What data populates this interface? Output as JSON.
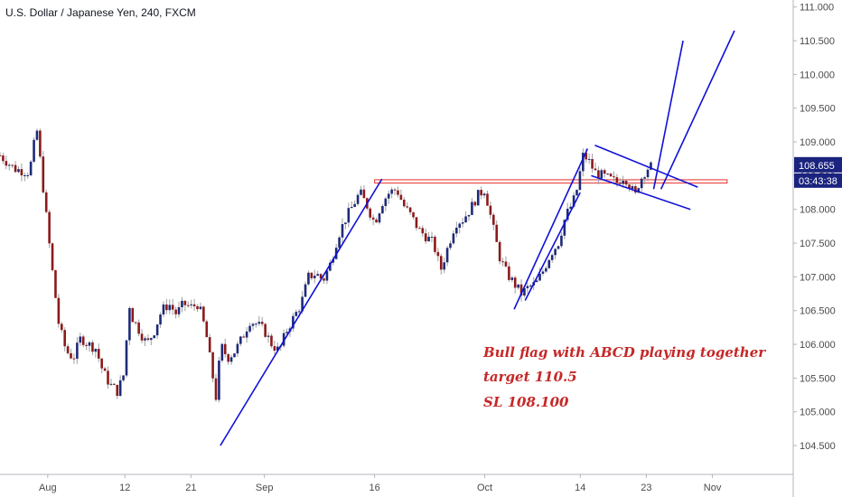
{
  "title": "U.S. Dollar / Japanese Yen, 240, FXCM",
  "colors": {
    "candle_up": "#1e2a78",
    "candle_down": "#8b1a1a",
    "wick": "#9e9e9e",
    "drawing": "#1010d8",
    "resistance": "#e53935",
    "price_badge_bg": "#1a237e",
    "annotation": "#c62828",
    "axis_text": "#4a4a4a"
  },
  "annotations": [
    "Bull flag with ABCD playing together",
    "target 110.5",
    "SL 108.100"
  ],
  "price_badge": {
    "price": "108.655",
    "countdown": "03:43:38"
  },
  "chart_data": {
    "type": "candlestick",
    "title": "U.S. Dollar / Japanese Yen, 240, FXCM",
    "ylim": [
      104.3,
      111.05
    ],
    "yticks": [
      "111.000",
      "110.500",
      "110.000",
      "109.500",
      "109.000",
      "108.500",
      "108.000",
      "107.500",
      "107.000",
      "106.500",
      "106.000",
      "105.500",
      "105.000",
      "104.500"
    ],
    "ytick_values": [
      111.0,
      110.5,
      110.0,
      109.5,
      109.0,
      108.5,
      108.0,
      107.5,
      107.0,
      106.5,
      106.0,
      105.5,
      105.0,
      104.5
    ],
    "xlim": [
      0,
      108
    ],
    "xticks": [
      {
        "label": "Aug",
        "t": 6.5
      },
      {
        "label": "12",
        "t": 17
      },
      {
        "label": "21",
        "t": 26
      },
      {
        "label": "Sep",
        "t": 36
      },
      {
        "label": "16",
        "t": 51
      },
      {
        "label": "Oct",
        "t": 66
      },
      {
        "label": "14",
        "t": 79
      },
      {
        "label": "23",
        "t": 88
      },
      {
        "label": "Nov",
        "t": 97
      }
    ],
    "close_path": [
      [
        0,
        108.8
      ],
      [
        2,
        108.6
      ],
      [
        4,
        108.55
      ],
      [
        5,
        109.2
      ],
      [
        6,
        108.2
      ],
      [
        7,
        107.2
      ],
      [
        8,
        106.3
      ],
      [
        9,
        105.9
      ],
      [
        10,
        105.8
      ],
      [
        11,
        106.1
      ],
      [
        12,
        106.0
      ],
      [
        13,
        105.95
      ],
      [
        14,
        105.6
      ],
      [
        15,
        105.4
      ],
      [
        16,
        105.3
      ],
      [
        17,
        105.6
      ],
      [
        17.5,
        106.65
      ],
      [
        18,
        106.4
      ],
      [
        19,
        106.2
      ],
      [
        20,
        106.0
      ],
      [
        21,
        106.2
      ],
      [
        22,
        106.5
      ],
      [
        23,
        106.6
      ],
      [
        24,
        106.45
      ],
      [
        25,
        106.6
      ],
      [
        26,
        106.55
      ],
      [
        27,
        106.6
      ],
      [
        28,
        106.2
      ],
      [
        29,
        105.5
      ],
      [
        29.5,
        105.15
      ],
      [
        30,
        106.0
      ],
      [
        31,
        105.8
      ],
      [
        32,
        105.9
      ],
      [
        33,
        106.1
      ],
      [
        34,
        106.35
      ],
      [
        35,
        106.3
      ],
      [
        36,
        106.2
      ],
      [
        37,
        106.0
      ],
      [
        38,
        105.9
      ],
      [
        39,
        106.2
      ],
      [
        40,
        106.4
      ],
      [
        41,
        106.6
      ],
      [
        42,
        107.0
      ],
      [
        43,
        107.05
      ],
      [
        44,
        106.95
      ],
      [
        45,
        107.2
      ],
      [
        46,
        107.6
      ],
      [
        47,
        107.85
      ],
      [
        48,
        108.05
      ],
      [
        49,
        108.25
      ],
      [
        50,
        108.05
      ],
      [
        51,
        107.8
      ],
      [
        52,
        108.1
      ],
      [
        53,
        108.25
      ],
      [
        54,
        108.3
      ],
      [
        55,
        108.05
      ],
      [
        56,
        107.9
      ],
      [
        57,
        107.7
      ],
      [
        58,
        107.6
      ],
      [
        59,
        107.5
      ],
      [
        60,
        107.1
      ],
      [
        61,
        107.45
      ],
      [
        62,
        107.8
      ],
      [
        63,
        107.85
      ],
      [
        64,
        108.0
      ],
      [
        65,
        108.2
      ],
      [
        66,
        108.3
      ],
      [
        67,
        107.8
      ],
      [
        68,
        107.3
      ],
      [
        69,
        107.05
      ],
      [
        70,
        106.9
      ],
      [
        71,
        106.75
      ],
      [
        72,
        106.85
      ],
      [
        73,
        106.9
      ],
      [
        74,
        107.1
      ],
      [
        75,
        107.35
      ],
      [
        76,
        107.5
      ],
      [
        77,
        107.9
      ],
      [
        78,
        108.1
      ],
      [
        78.7,
        108.35
      ],
      [
        79.3,
        108.8
      ],
      [
        80,
        108.75
      ],
      [
        81,
        108.55
      ],
      [
        82,
        108.5
      ],
      [
        83,
        108.45
      ],
      [
        84,
        108.4
      ],
      [
        85,
        108.5
      ],
      [
        86,
        108.3
      ],
      [
        86.5,
        108.2
      ],
      [
        87,
        108.4
      ],
      [
        88,
        108.6
      ],
      [
        89,
        108.66
      ]
    ],
    "resistance_zone": {
      "t_start": 51,
      "t_end": 99,
      "y_top": 108.44,
      "y_bottom": 108.39
    },
    "trendlines": [
      {
        "name": "leg-ab-trendline",
        "points": [
          [
            30,
            104.5
          ],
          [
            52,
            108.45
          ]
        ]
      },
      {
        "name": "leg-cd-trendline",
        "points": [
          [
            70,
            106.52
          ],
          [
            80,
            108.9
          ]
        ]
      },
      {
        "name": "leg-cd-parallel",
        "points": [
          [
            71.5,
            106.65
          ],
          [
            79,
            108.25
          ]
        ]
      },
      {
        "name": "flag-upper-line",
        "points": [
          [
            81,
            108.95
          ],
          [
            95,
            108.33
          ]
        ]
      },
      {
        "name": "flag-lower-line",
        "points": [
          [
            80.5,
            108.5
          ],
          [
            94,
            108.0
          ]
        ]
      },
      {
        "name": "target-line-left",
        "points": [
          [
            89,
            108.3
          ],
          [
            93,
            110.5
          ]
        ]
      },
      {
        "name": "target-line-right",
        "points": [
          [
            90,
            108.3
          ],
          [
            100,
            110.65
          ]
        ]
      }
    ]
  }
}
